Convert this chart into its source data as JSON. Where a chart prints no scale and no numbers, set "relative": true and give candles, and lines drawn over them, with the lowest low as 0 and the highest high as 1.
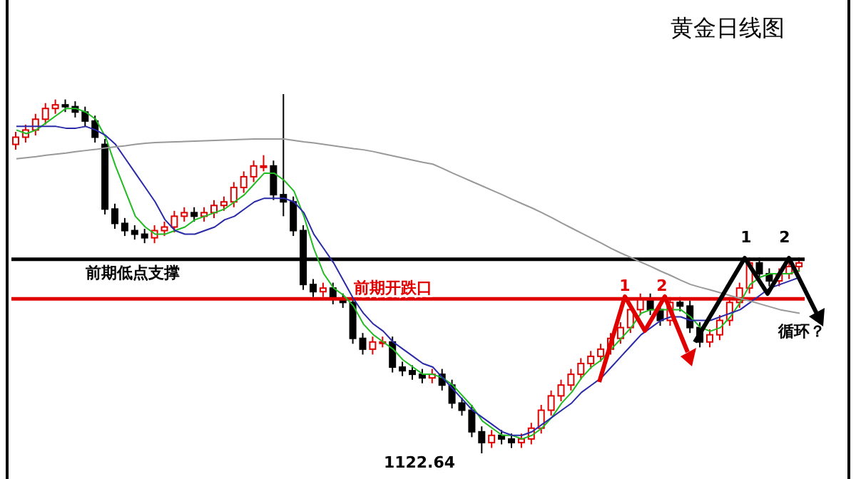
{
  "chart_data": {
    "type": "candlestick",
    "title": "黄金日线图",
    "relative": true,
    "legend": false,
    "grid": false,
    "categories": [
      null,
      null,
      null,
      null,
      null,
      null,
      null,
      null,
      null,
      null,
      null,
      null,
      null,
      null,
      null,
      null,
      null,
      null,
      null,
      null,
      null,
      null,
      null,
      null,
      null,
      null,
      null,
      null,
      null,
      null,
      null,
      null,
      null,
      null,
      null,
      null,
      null,
      null,
      null,
      null,
      null,
      null,
      null,
      null,
      null,
      null,
      null,
      null,
      null,
      null,
      null,
      null,
      null,
      null,
      null,
      null,
      null,
      null,
      null,
      null,
      null,
      null,
      null,
      null,
      null,
      null,
      null,
      null,
      null,
      null,
      null,
      null,
      null,
      null,
      null,
      null,
      null,
      null,
      null,
      null
    ],
    "ohlc": [
      [
        0.86,
        0.895,
        0.845,
        0.88
      ],
      [
        0.88,
        0.915,
        0.865,
        0.9
      ],
      [
        0.9,
        0.945,
        0.885,
        0.93
      ],
      [
        0.93,
        0.975,
        0.915,
        0.96
      ],
      [
        0.96,
        0.985,
        0.945,
        0.97
      ],
      [
        0.97,
        0.985,
        0.95,
        0.965
      ],
      [
        0.965,
        0.98,
        0.935,
        0.95
      ],
      [
        0.95,
        0.965,
        0.91,
        0.925
      ],
      [
        0.925,
        0.94,
        0.865,
        0.88
      ],
      [
        0.86,
        0.875,
        0.665,
        0.68
      ],
      [
        0.68,
        0.695,
        0.625,
        0.64
      ],
      [
        0.64,
        0.655,
        0.605,
        0.62
      ],
      [
        0.62,
        0.635,
        0.595,
        0.61
      ],
      [
        0.61,
        0.625,
        0.585,
        0.6
      ],
      [
        0.6,
        0.635,
        0.585,
        0.62
      ],
      [
        0.62,
        0.645,
        0.605,
        0.63
      ],
      [
        0.63,
        0.675,
        0.615,
        0.66
      ],
      [
        0.66,
        0.685,
        0.645,
        0.67
      ],
      [
        0.67,
        0.685,
        0.645,
        0.66
      ],
      [
        0.66,
        0.685,
        0.645,
        0.67
      ],
      [
        0.67,
        0.705,
        0.655,
        0.69
      ],
      [
        0.69,
        0.715,
        0.675,
        0.7
      ],
      [
        0.7,
        0.755,
        0.685,
        0.74
      ],
      [
        0.74,
        0.785,
        0.725,
        0.77
      ],
      [
        0.77,
        0.815,
        0.755,
        0.8
      ],
      [
        0.8,
        0.83,
        0.785,
        0.8
      ],
      [
        0.8,
        0.815,
        0.705,
        0.72
      ],
      [
        0.72,
        1,
        0.66,
        0.7
      ],
      [
        0.7,
        0.715,
        0.605,
        0.62
      ],
      [
        0.62,
        0.635,
        0.455,
        0.47
      ],
      [
        0.47,
        0.485,
        0.435,
        0.45
      ],
      [
        0.45,
        0.475,
        0.435,
        0.46
      ],
      [
        0.46,
        0.475,
        0.415,
        0.43
      ],
      [
        0.43,
        0.445,
        0.405,
        0.42
      ],
      [
        0.42,
        0.435,
        0.305,
        0.32
      ],
      [
        0.32,
        0.335,
        0.275,
        0.29
      ],
      [
        0.29,
        0.325,
        0.275,
        0.31
      ],
      [
        0.31,
        0.325,
        0.295,
        0.31
      ],
      [
        0.31,
        0.325,
        0.225,
        0.24
      ],
      [
        0.24,
        0.255,
        0.215,
        0.23
      ],
      [
        0.23,
        0.245,
        0.205,
        0.22
      ],
      [
        0.22,
        0.235,
        0.195,
        0.21
      ],
      [
        0.21,
        0.235,
        0.195,
        0.22
      ],
      [
        0.22,
        0.235,
        0.175,
        0.19
      ],
      [
        0.19,
        0.205,
        0.125,
        0.14
      ],
      [
        0.14,
        0.155,
        0.105,
        0.12
      ],
      [
        0.12,
        0.135,
        0.045,
        0.06
      ],
      [
        0.06,
        0.075,
        0,
        0.03
      ],
      [
        0.03,
        0.065,
        0.015,
        0.05
      ],
      [
        0.05,
        0.065,
        0.025,
        0.04
      ],
      [
        0.04,
        0.055,
        0.015,
        0.03
      ],
      [
        0.03,
        0.055,
        0.015,
        0.04
      ],
      [
        0.04,
        0.085,
        0.025,
        0.07
      ],
      [
        0.07,
        0.135,
        0.055,
        0.12
      ],
      [
        0.12,
        0.175,
        0.105,
        0.16
      ],
      [
        0.16,
        0.205,
        0.145,
        0.19
      ],
      [
        0.19,
        0.235,
        0.175,
        0.22
      ],
      [
        0.22,
        0.265,
        0.205,
        0.25
      ],
      [
        0.25,
        0.285,
        0.235,
        0.27
      ],
      [
        0.27,
        0.305,
        0.255,
        0.29
      ],
      [
        0.29,
        0.335,
        0.275,
        0.32
      ],
      [
        0.32,
        0.365,
        0.305,
        0.35
      ],
      [
        0.35,
        0.415,
        0.335,
        0.4
      ],
      [
        0.4,
        0.445,
        0.385,
        0.43
      ],
      [
        0.43,
        0.445,
        0.385,
        0.4
      ],
      [
        0.4,
        0.415,
        0.355,
        0.37
      ],
      [
        0.37,
        0.435,
        0.355,
        0.42
      ],
      [
        0.42,
        0.435,
        0.395,
        0.41
      ],
      [
        0.41,
        0.425,
        0.335,
        0.35
      ],
      [
        0.35,
        0.365,
        0.295,
        0.31
      ],
      [
        0.31,
        0.345,
        0.295,
        0.33
      ],
      [
        0.33,
        0.385,
        0.315,
        0.37
      ],
      [
        0.37,
        0.435,
        0.355,
        0.42
      ],
      [
        0.42,
        0.475,
        0.405,
        0.46
      ],
      [
        0.46,
        0.545,
        0.445,
        0.53
      ],
      [
        0.53,
        0.545,
        0.485,
        0.5
      ],
      [
        0.5,
        0.515,
        0.465,
        0.48
      ],
      [
        0.48,
        0.515,
        0.465,
        0.5
      ],
      [
        0.5,
        0.535,
        0.485,
        0.52
      ],
      [
        0.52,
        0.545,
        0.505,
        0.53
      ]
    ],
    "series": [
      {
        "type": "line",
        "color": "#22bb22",
        "values": [
          0.9,
          0.89,
          0.9,
          0.92,
          0.94,
          0.96,
          0.96,
          0.95,
          0.93,
          0.88,
          0.8,
          0.73,
          0.66,
          0.63,
          0.61,
          0.61,
          0.62,
          0.63,
          0.65,
          0.66,
          0.67,
          0.68,
          0.7,
          0.72,
          0.75,
          0.78,
          0.78,
          0.76,
          0.73,
          0.66,
          0.57,
          0.5,
          0.46,
          0.44,
          0.41,
          0.36,
          0.33,
          0.31,
          0.29,
          0.26,
          0.24,
          0.22,
          0.22,
          0.21,
          0.19,
          0.16,
          0.13,
          0.09,
          0.07,
          0.05,
          0.05,
          0.04,
          0.05,
          0.07,
          0.1,
          0.14,
          0.17,
          0.21,
          0.24,
          0.26,
          0.29,
          0.32,
          0.35,
          0.39,
          0.4,
          0.4,
          0.4,
          0.4,
          0.38,
          0.35,
          0.34,
          0.35,
          0.38,
          0.42,
          0.47,
          0.49,
          0.5,
          0.5,
          0.5,
          0.51
        ]
      },
      {
        "type": "line",
        "color": "#2a2aa8",
        "values": [
          0.91,
          0.91,
          0.91,
          0.91,
          0.91,
          0.905,
          0.905,
          0.91,
          0.9,
          0.885,
          0.86,
          0.82,
          0.78,
          0.74,
          0.7,
          0.65,
          0.62,
          0.61,
          0.61,
          0.62,
          0.63,
          0.65,
          0.66,
          0.68,
          0.7,
          0.71,
          0.71,
          0.71,
          0.7,
          0.67,
          0.61,
          0.57,
          0.53,
          0.48,
          0.43,
          0.39,
          0.36,
          0.34,
          0.31,
          0.29,
          0.27,
          0.25,
          0.24,
          0.21,
          0.18,
          0.15,
          0.12,
          0.1,
          0.08,
          0.06,
          0.05,
          0.05,
          0.06,
          0.08,
          0.1,
          0.12,
          0.14,
          0.17,
          0.19,
          0.21,
          0.24,
          0.27,
          0.3,
          0.33,
          0.35,
          0.37,
          0.38,
          0.38,
          0.37,
          0.37,
          0.37,
          0.38,
          0.39,
          0.4,
          0.42,
          0.44,
          0.46,
          0.47,
          0.48,
          0.49
        ]
      },
      {
        "type": "line",
        "color": "#999999",
        "values": [
          0.82,
          0.823,
          0.826,
          0.83,
          0.833,
          0.836,
          0.84,
          0.843,
          0.846,
          0.85,
          0.853,
          0.856,
          0.86,
          0.863,
          0.865,
          0.866,
          0.867,
          0.868,
          0.869,
          0.87,
          0.871,
          0.872,
          0.873,
          0.874,
          0.875,
          0.875,
          0.875,
          0.875,
          0.871,
          0.867,
          0.864,
          0.86,
          0.856,
          0.852,
          0.848,
          0.845,
          0.84,
          0.834,
          0.828,
          0.822,
          0.816,
          0.81,
          0.805,
          0.793,
          0.78,
          0.768,
          0.756,
          0.744,
          0.732,
          0.72,
          0.707,
          0.695,
          0.683,
          0.67,
          0.656,
          0.641,
          0.627,
          0.613,
          0.599,
          0.585,
          0.57,
          0.557,
          0.545,
          0.532,
          0.52,
          0.507,
          0.495,
          0.482,
          0.47,
          0.462,
          0.455,
          0.447,
          0.439,
          0.431,
          0.424,
          0.416,
          0.408,
          0.4,
          0.395,
          0.39
        ]
      }
    ],
    "ref_lines": [
      {
        "axis": "y",
        "value": 0.54,
        "label": "前期低点支撑",
        "color": "#000000"
      },
      {
        "axis": "y",
        "value": 0.43,
        "label": "前期开跌口",
        "color": "#e00000"
      }
    ],
    "annotations": [
      "1",
      "2",
      "1",
      "2",
      "循环？",
      "1122.64"
    ]
  }
}
